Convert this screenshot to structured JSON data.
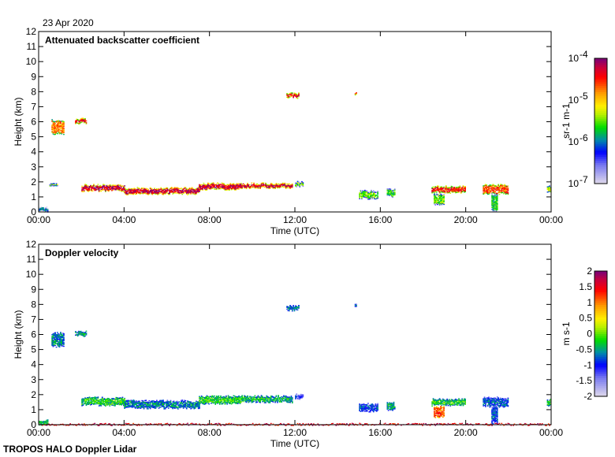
{
  "date_label": "23 Apr 2020",
  "footer": "TROPOS HALO Doppler Lidar",
  "chart_data": [
    {
      "type": "heatmap",
      "title": "Attenuated backscatter coefficient",
      "xlabel": "Time (UTC)",
      "ylabel": "Height (km)",
      "xlim": [
        0,
        24
      ],
      "ylim": [
        0,
        12
      ],
      "xticks": [
        "00:00",
        "04:00",
        "08:00",
        "12:00",
        "16:00",
        "20:00",
        "00:00"
      ],
      "yticks": [
        "0",
        "1",
        "2",
        "3",
        "4",
        "5",
        "6",
        "7",
        "8",
        "9",
        "10",
        "11",
        "12"
      ],
      "colorbar": {
        "label": "sr-1 m-1",
        "scale": "log",
        "range": [
          -7,
          -4
        ],
        "ticks": [
          "10",
          "10",
          "10",
          "10"
        ],
        "tick_exponents": [
          "-7",
          "-6",
          "-5",
          "-4"
        ]
      },
      "features": [
        {
          "t": [
            0,
            0.4
          ],
          "h": [
            0,
            0.3
          ],
          "v": 0.35
        },
        {
          "t": [
            0.6,
            1.2
          ],
          "h": [
            5.2,
            6.1
          ],
          "v": 0.75
        },
        {
          "t": [
            1.7,
            2.2
          ],
          "h": [
            5.9,
            6.2
          ],
          "v": 0.88
        },
        {
          "t": [
            0.5,
            0.9
          ],
          "h": [
            1.7,
            1.9
          ],
          "v": 0.55
        },
        {
          "t": [
            2.0,
            4.0
          ],
          "h": [
            1.4,
            1.8
          ],
          "v": 0.92
        },
        {
          "t": [
            4.0,
            7.5
          ],
          "h": [
            1.2,
            1.6
          ],
          "v": 0.92
        },
        {
          "t": [
            7.5,
            9.5
          ],
          "h": [
            1.5,
            1.9
          ],
          "v": 0.92
        },
        {
          "t": [
            9.5,
            11.9
          ],
          "h": [
            1.6,
            1.9
          ],
          "v": 0.92
        },
        {
          "t": [
            12.0,
            12.4
          ],
          "h": [
            1.7,
            2.0
          ],
          "v": 0.5
        },
        {
          "t": [
            11.6,
            12.2
          ],
          "h": [
            7.6,
            7.9
          ],
          "v": 0.88
        },
        {
          "t": [
            14.8,
            14.9
          ],
          "h": [
            7.8,
            8.0
          ],
          "v": 0.88
        },
        {
          "t": [
            15.0,
            15.9
          ],
          "h": [
            0.9,
            1.4
          ],
          "v": 0.5
        },
        {
          "t": [
            16.3,
            16.7
          ],
          "h": [
            1.0,
            1.5
          ],
          "v": 0.45
        },
        {
          "t": [
            18.4,
            20.0
          ],
          "h": [
            1.3,
            1.7
          ],
          "v": 0.85
        },
        {
          "t": [
            18.5,
            19.0
          ],
          "h": [
            0.5,
            1.2
          ],
          "v": 0.5
        },
        {
          "t": [
            20.8,
            22.0
          ],
          "h": [
            1.2,
            1.8
          ],
          "v": 0.8
        },
        {
          "t": [
            21.2,
            21.5
          ],
          "h": [
            0.1,
            1.2
          ],
          "v": 0.45
        },
        {
          "t": [
            23.8,
            24.0
          ],
          "h": [
            1.3,
            1.7
          ],
          "v": 0.6
        }
      ]
    },
    {
      "type": "heatmap",
      "title": "Doppler velocity",
      "xlabel": "Time (UTC)",
      "ylabel": "Height (km)",
      "xlim": [
        0,
        24
      ],
      "ylim": [
        0,
        12
      ],
      "xticks": [
        "00:00",
        "04:00",
        "08:00",
        "12:00",
        "16:00",
        "20:00",
        "00:00"
      ],
      "yticks": [
        "0",
        "1",
        "2",
        "3",
        "4",
        "5",
        "6",
        "7",
        "8",
        "9",
        "10",
        "11",
        "12"
      ],
      "colorbar": {
        "label": "m s-1",
        "range": [
          -2,
          2
        ],
        "ticks": [
          "-2",
          "-1.5",
          "-1",
          "-0.5",
          "0",
          "0.5",
          "1",
          "1.5",
          "2"
        ]
      },
      "features": [
        {
          "t": [
            0,
            0.4
          ],
          "h": [
            0,
            0.3
          ],
          "v": 0.45
        },
        {
          "t": [
            0.6,
            1.2
          ],
          "h": [
            5.2,
            6.1
          ],
          "v": 0.35
        },
        {
          "t": [
            1.7,
            2.2
          ],
          "h": [
            5.9,
            6.2
          ],
          "v": 0.4
        },
        {
          "t": [
            2.0,
            4.0
          ],
          "h": [
            1.3,
            1.8
          ],
          "v": 0.45
        },
        {
          "t": [
            4.0,
            7.5
          ],
          "h": [
            1.1,
            1.6
          ],
          "v": 0.35
        },
        {
          "t": [
            7.5,
            9.5
          ],
          "h": [
            1.4,
            1.9
          ],
          "v": 0.45
        },
        {
          "t": [
            9.5,
            11.9
          ],
          "h": [
            1.5,
            1.9
          ],
          "v": 0.42
        },
        {
          "t": [
            12.0,
            12.4
          ],
          "h": [
            1.7,
            2.0
          ],
          "v": 0.25
        },
        {
          "t": [
            11.6,
            12.2
          ],
          "h": [
            7.6,
            7.9
          ],
          "v": 0.35
        },
        {
          "t": [
            14.8,
            14.9
          ],
          "h": [
            7.8,
            8.0
          ],
          "v": 0.35
        },
        {
          "t": [
            15.0,
            15.9
          ],
          "h": [
            0.9,
            1.4
          ],
          "v": 0.3
        },
        {
          "t": [
            16.3,
            16.7
          ],
          "h": [
            1.0,
            1.5
          ],
          "v": 0.4
        },
        {
          "t": [
            18.4,
            20.0
          ],
          "h": [
            1.3,
            1.7
          ],
          "v": 0.45
        },
        {
          "t": [
            18.5,
            19.0
          ],
          "h": [
            0.5,
            1.2
          ],
          "v": 0.8
        },
        {
          "t": [
            20.8,
            22.0
          ],
          "h": [
            1.2,
            1.8
          ],
          "v": 0.3
        },
        {
          "t": [
            21.2,
            21.5
          ],
          "h": [
            0.1,
            1.2
          ],
          "v": 0.3
        },
        {
          "t": [
            23.8,
            24.0
          ],
          "h": [
            1.3,
            1.7
          ],
          "v": 0.45
        },
        {
          "t": [
            0,
            24
          ],
          "h": [
            0,
            0.05
          ],
          "v": 0.97
        }
      ]
    }
  ]
}
